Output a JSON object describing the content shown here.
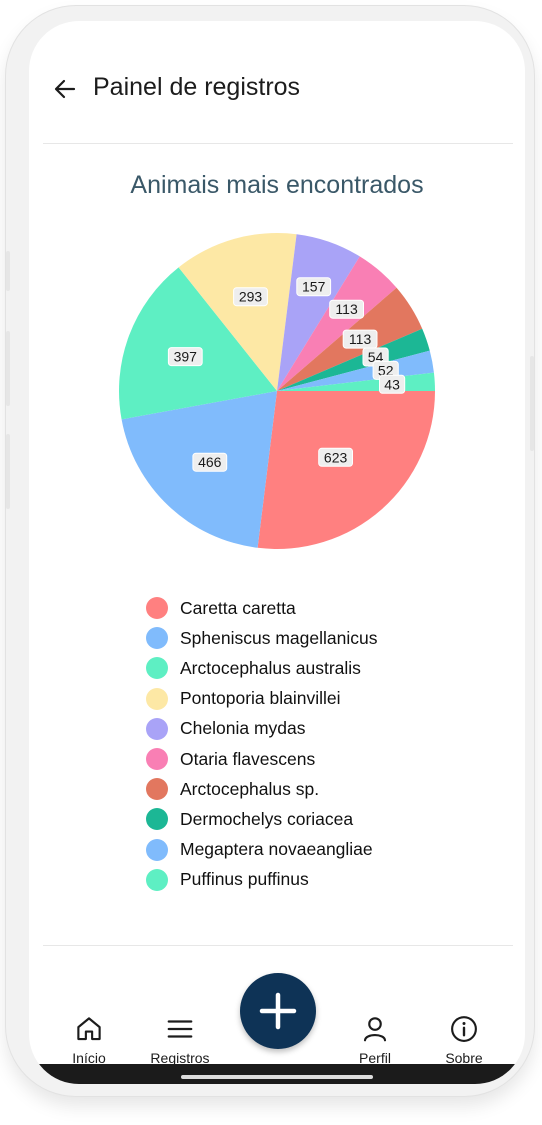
{
  "header": {
    "title": "Painel de registros"
  },
  "chart_data": {
    "type": "pie",
    "title": "Animais mais encontrados",
    "categories": [
      "Caretta caretta",
      "Spheniscus magellanicus",
      "Arctocephalus australis",
      "Pontoporia blainvillei",
      "Chelonia mydas",
      "Otaria flavescens",
      "Arctocephalus sp.",
      "Dermochelys coriacea",
      "Megaptera novaeangliae",
      "Puffinus puffinus"
    ],
    "values": [
      623,
      466,
      397,
      293,
      157,
      113,
      113,
      54,
      52,
      43
    ],
    "colors": [
      "#ff8080",
      "#80bbfc",
      "#5eefc3",
      "#fde8a5",
      "#a9a3f7",
      "#f97fb4",
      "#e2775f",
      "#1cb795",
      "#80bbfc",
      "#5eefc3"
    ],
    "legend": "bottom"
  },
  "nav": {
    "items": [
      {
        "label": "Início",
        "icon": "home-icon"
      },
      {
        "label": "Registros",
        "icon": "menu-icon"
      },
      {
        "label": "Perfil",
        "icon": "user-icon"
      },
      {
        "label": "Sobre",
        "icon": "info-icon"
      }
    ],
    "fab_icon": "plus-icon"
  },
  "theme": {
    "accent": "#0e3356",
    "title_color": "#3a5868"
  }
}
